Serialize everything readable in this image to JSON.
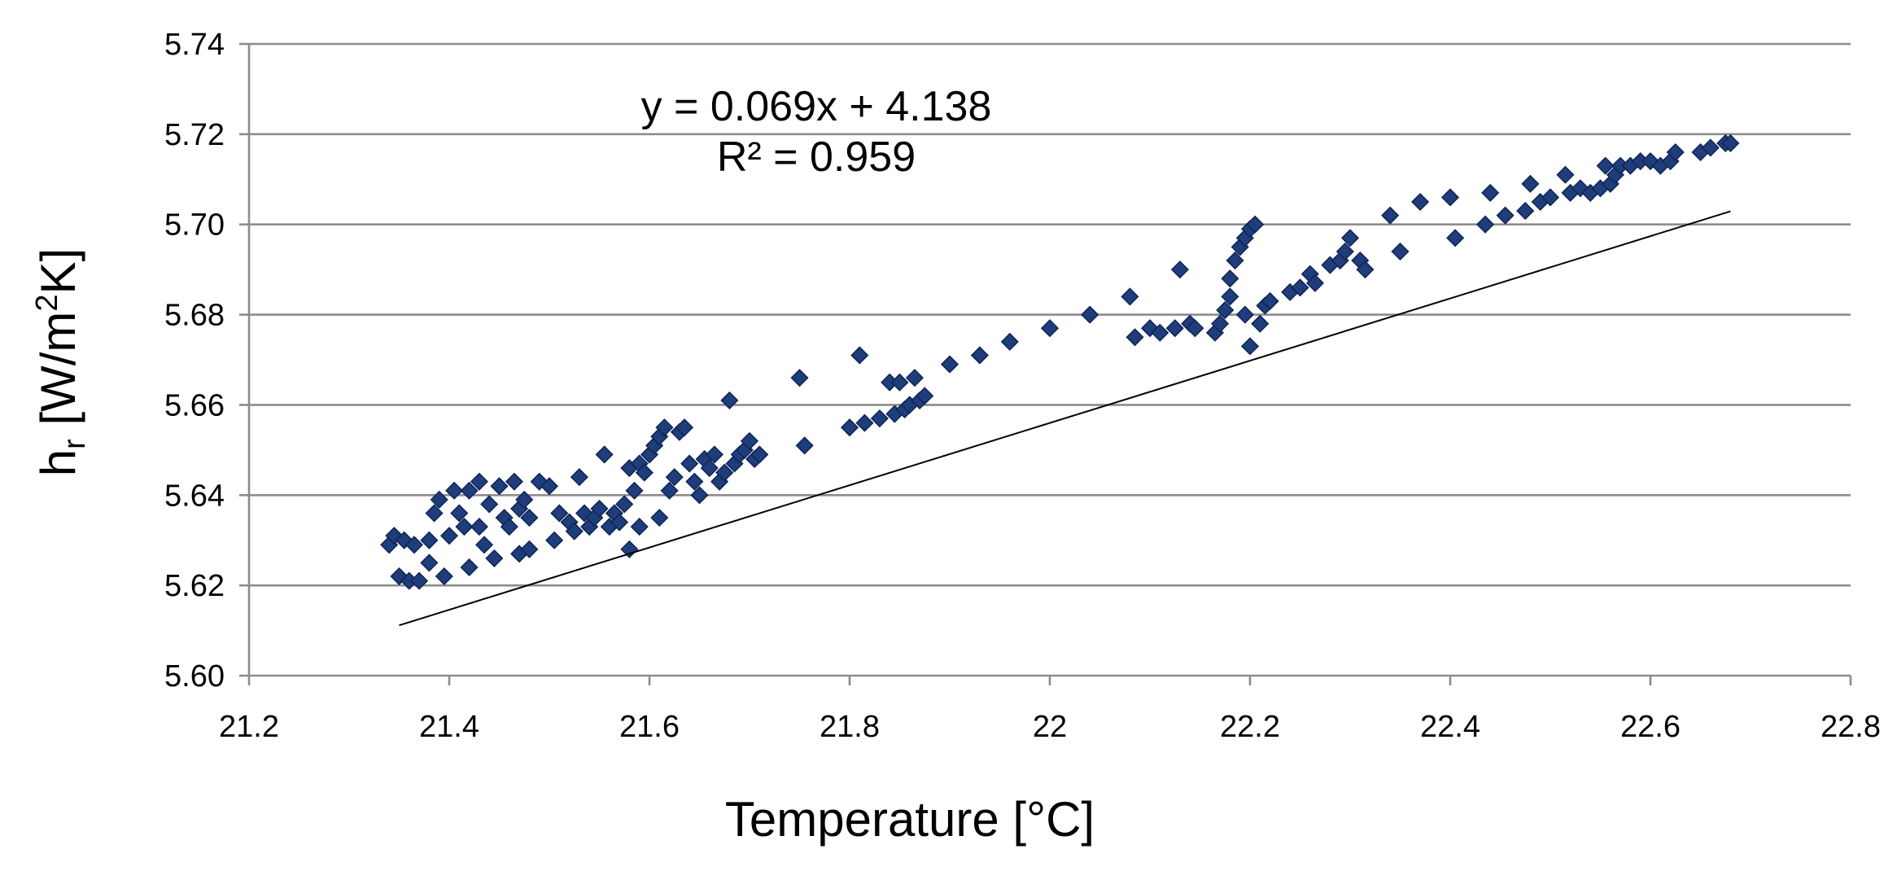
{
  "chart_data": {
    "type": "scatter",
    "title": "",
    "xlabel": "Temperature [°C]",
    "ylabel": {
      "main": "h",
      "sub": "r",
      "unit_prefix": " [W/m",
      "unit_sup": "2",
      "unit_suffix": "K]"
    },
    "xlim": [
      21.2,
      22.8
    ],
    "ylim": [
      5.6,
      5.74
    ],
    "xticks": [
      21.2,
      21.4,
      21.6,
      21.8,
      22.0,
      22.2,
      22.4,
      22.6,
      22.8
    ],
    "xtick_labels": [
      "21.2",
      "21.4",
      "21.6",
      "21.8",
      "22",
      "22.2",
      "22.4",
      "22.6",
      "22.8"
    ],
    "yticks": [
      5.6,
      5.62,
      5.64,
      5.66,
      5.68,
      5.7,
      5.72,
      5.74
    ],
    "ytick_labels": [
      "5.60",
      "5.62",
      "5.64",
      "5.66",
      "5.68",
      "5.70",
      "5.72",
      "5.74"
    ],
    "grid": "horizontal",
    "marker": "diamond",
    "colors": {
      "marker_fill": "#1f3d7a",
      "marker_edge": "#0f2456",
      "trendline": "#000000",
      "gridline": "#8c8c8c"
    },
    "trendline": {
      "slope": 0.069,
      "intercept": 4.138,
      "x_range": [
        21.35,
        22.68
      ],
      "equation_text": "y = 0.069x + 4.138",
      "r2_text": "R² = 0.959"
    },
    "series": [
      {
        "name": "h_r",
        "points": [
          [
            21.34,
            5.629
          ],
          [
            21.345,
            5.631
          ],
          [
            21.35,
            5.622
          ],
          [
            21.355,
            5.63
          ],
          [
            21.36,
            5.621
          ],
          [
            21.365,
            5.629
          ],
          [
            21.37,
            5.621
          ],
          [
            21.38,
            5.625
          ],
          [
            21.38,
            5.63
          ],
          [
            21.385,
            5.636
          ],
          [
            21.39,
            5.639
          ],
          [
            21.395,
            5.622
          ],
          [
            21.4,
            5.631
          ],
          [
            21.405,
            5.641
          ],
          [
            21.41,
            5.636
          ],
          [
            21.415,
            5.633
          ],
          [
            21.42,
            5.624
          ],
          [
            21.42,
            5.641
          ],
          [
            21.43,
            5.643
          ],
          [
            21.43,
            5.633
          ],
          [
            21.435,
            5.629
          ],
          [
            21.44,
            5.638
          ],
          [
            21.445,
            5.626
          ],
          [
            21.45,
            5.642
          ],
          [
            21.455,
            5.635
          ],
          [
            21.46,
            5.633
          ],
          [
            21.465,
            5.643
          ],
          [
            21.47,
            5.627
          ],
          [
            21.47,
            5.637
          ],
          [
            21.475,
            5.639
          ],
          [
            21.48,
            5.635
          ],
          [
            21.48,
            5.628
          ],
          [
            21.49,
            5.643
          ],
          [
            21.5,
            5.642
          ],
          [
            21.505,
            5.63
          ],
          [
            21.51,
            5.636
          ],
          [
            21.52,
            5.634
          ],
          [
            21.525,
            5.632
          ],
          [
            21.53,
            5.644
          ],
          [
            21.535,
            5.636
          ],
          [
            21.54,
            5.633
          ],
          [
            21.545,
            5.635
          ],
          [
            21.55,
            5.637
          ],
          [
            21.555,
            5.649
          ],
          [
            21.56,
            5.633
          ],
          [
            21.565,
            5.636
          ],
          [
            21.57,
            5.634
          ],
          [
            21.575,
            5.638
          ],
          [
            21.58,
            5.628
          ],
          [
            21.58,
            5.646
          ],
          [
            21.585,
            5.641
          ],
          [
            21.59,
            5.633
          ],
          [
            21.59,
            5.647
          ],
          [
            21.595,
            5.645
          ],
          [
            21.6,
            5.649
          ],
          [
            21.605,
            5.651
          ],
          [
            21.61,
            5.635
          ],
          [
            21.61,
            5.653
          ],
          [
            21.615,
            5.655
          ],
          [
            21.62,
            5.641
          ],
          [
            21.625,
            5.644
          ],
          [
            21.63,
            5.654
          ],
          [
            21.635,
            5.655
          ],
          [
            21.64,
            5.647
          ],
          [
            21.645,
            5.643
          ],
          [
            21.65,
            5.64
          ],
          [
            21.655,
            5.648
          ],
          [
            21.66,
            5.646
          ],
          [
            21.665,
            5.649
          ],
          [
            21.67,
            5.643
          ],
          [
            21.675,
            5.645
          ],
          [
            21.68,
            5.661
          ],
          [
            21.685,
            5.647
          ],
          [
            21.69,
            5.649
          ],
          [
            21.695,
            5.65
          ],
          [
            21.7,
            5.652
          ],
          [
            21.705,
            5.648
          ],
          [
            21.71,
            5.649
          ],
          [
            21.75,
            5.666
          ],
          [
            21.755,
            5.651
          ],
          [
            21.8,
            5.655
          ],
          [
            21.81,
            5.671
          ],
          [
            21.815,
            5.656
          ],
          [
            21.83,
            5.657
          ],
          [
            21.84,
            5.665
          ],
          [
            21.845,
            5.658
          ],
          [
            21.85,
            5.665
          ],
          [
            21.855,
            5.659
          ],
          [
            21.86,
            5.66
          ],
          [
            21.865,
            5.666
          ],
          [
            21.87,
            5.661
          ],
          [
            21.875,
            5.662
          ],
          [
            21.9,
            5.669
          ],
          [
            21.93,
            5.671
          ],
          [
            21.96,
            5.674
          ],
          [
            22.0,
            5.677
          ],
          [
            22.04,
            5.68
          ],
          [
            22.08,
            5.684
          ],
          [
            22.085,
            5.675
          ],
          [
            22.1,
            5.677
          ],
          [
            22.11,
            5.676
          ],
          [
            22.125,
            5.677
          ],
          [
            22.13,
            5.69
          ],
          [
            22.14,
            5.678
          ],
          [
            22.145,
            5.677
          ],
          [
            22.165,
            5.676
          ],
          [
            22.17,
            5.678
          ],
          [
            22.175,
            5.681
          ],
          [
            22.18,
            5.684
          ],
          [
            22.18,
            5.688
          ],
          [
            22.185,
            5.692
          ],
          [
            22.19,
            5.695
          ],
          [
            22.195,
            5.68
          ],
          [
            22.195,
            5.697
          ],
          [
            22.2,
            5.673
          ],
          [
            22.2,
            5.699
          ],
          [
            22.205,
            5.7
          ],
          [
            22.21,
            5.678
          ],
          [
            22.215,
            5.682
          ],
          [
            22.22,
            5.683
          ],
          [
            22.24,
            5.685
          ],
          [
            22.25,
            5.686
          ],
          [
            22.26,
            5.689
          ],
          [
            22.265,
            5.687
          ],
          [
            22.28,
            5.691
          ],
          [
            22.29,
            5.692
          ],
          [
            22.295,
            5.694
          ],
          [
            22.3,
            5.697
          ],
          [
            22.31,
            5.692
          ],
          [
            22.315,
            5.69
          ],
          [
            22.34,
            5.702
          ],
          [
            22.35,
            5.694
          ],
          [
            22.37,
            5.705
          ],
          [
            22.4,
            5.706
          ],
          [
            22.405,
            5.697
          ],
          [
            22.435,
            5.7
          ],
          [
            22.44,
            5.707
          ],
          [
            22.455,
            5.702
          ],
          [
            22.475,
            5.703
          ],
          [
            22.48,
            5.709
          ],
          [
            22.49,
            5.705
          ],
          [
            22.5,
            5.706
          ],
          [
            22.515,
            5.711
          ],
          [
            22.52,
            5.707
          ],
          [
            22.53,
            5.708
          ],
          [
            22.54,
            5.707
          ],
          [
            22.55,
            5.708
          ],
          [
            22.555,
            5.713
          ],
          [
            22.56,
            5.709
          ],
          [
            22.565,
            5.711
          ],
          [
            22.57,
            5.713
          ],
          [
            22.58,
            5.713
          ],
          [
            22.59,
            5.714
          ],
          [
            22.6,
            5.714
          ],
          [
            22.61,
            5.713
          ],
          [
            22.62,
            5.714
          ],
          [
            22.625,
            5.716
          ],
          [
            22.65,
            5.716
          ],
          [
            22.66,
            5.717
          ],
          [
            22.675,
            5.718
          ],
          [
            22.68,
            5.718
          ]
        ]
      }
    ]
  }
}
